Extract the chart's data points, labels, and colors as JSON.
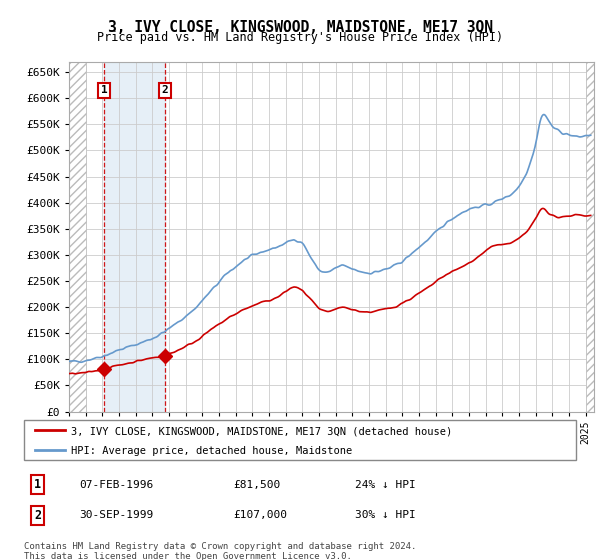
{
  "title": "3, IVY CLOSE, KINGSWOOD, MAIDSTONE, ME17 3QN",
  "subtitle": "Price paid vs. HM Land Registry's House Price Index (HPI)",
  "ylim": [
    0,
    670000
  ],
  "yticks": [
    0,
    50000,
    100000,
    150000,
    200000,
    250000,
    300000,
    350000,
    400000,
    450000,
    500000,
    550000,
    600000,
    650000
  ],
  "xlim_start": 1994.0,
  "xlim_end": 2025.5,
  "transaction1_date": 1996.1,
  "transaction1_price": 81500,
  "transaction2_date": 1999.75,
  "transaction2_price": 107000,
  "legend_line1": "3, IVY CLOSE, KINGSWOOD, MAIDSTONE, ME17 3QN (detached house)",
  "legend_line2": "HPI: Average price, detached house, Maidstone",
  "table_row1": [
    "1",
    "07-FEB-1996",
    "£81,500",
    "24% ↓ HPI"
  ],
  "table_row2": [
    "2",
    "30-SEP-1999",
    "£107,000",
    "30% ↓ HPI"
  ],
  "footnote": "Contains HM Land Registry data © Crown copyright and database right 2024.\nThis data is licensed under the Open Government Licence v3.0.",
  "hpi_color": "#6699cc",
  "price_color": "#cc0000",
  "shade_color": "#dce9f5",
  "grid_color": "#cccccc",
  "hatch_left_end": 1995.0,
  "hatch_right_start": 2025.0
}
